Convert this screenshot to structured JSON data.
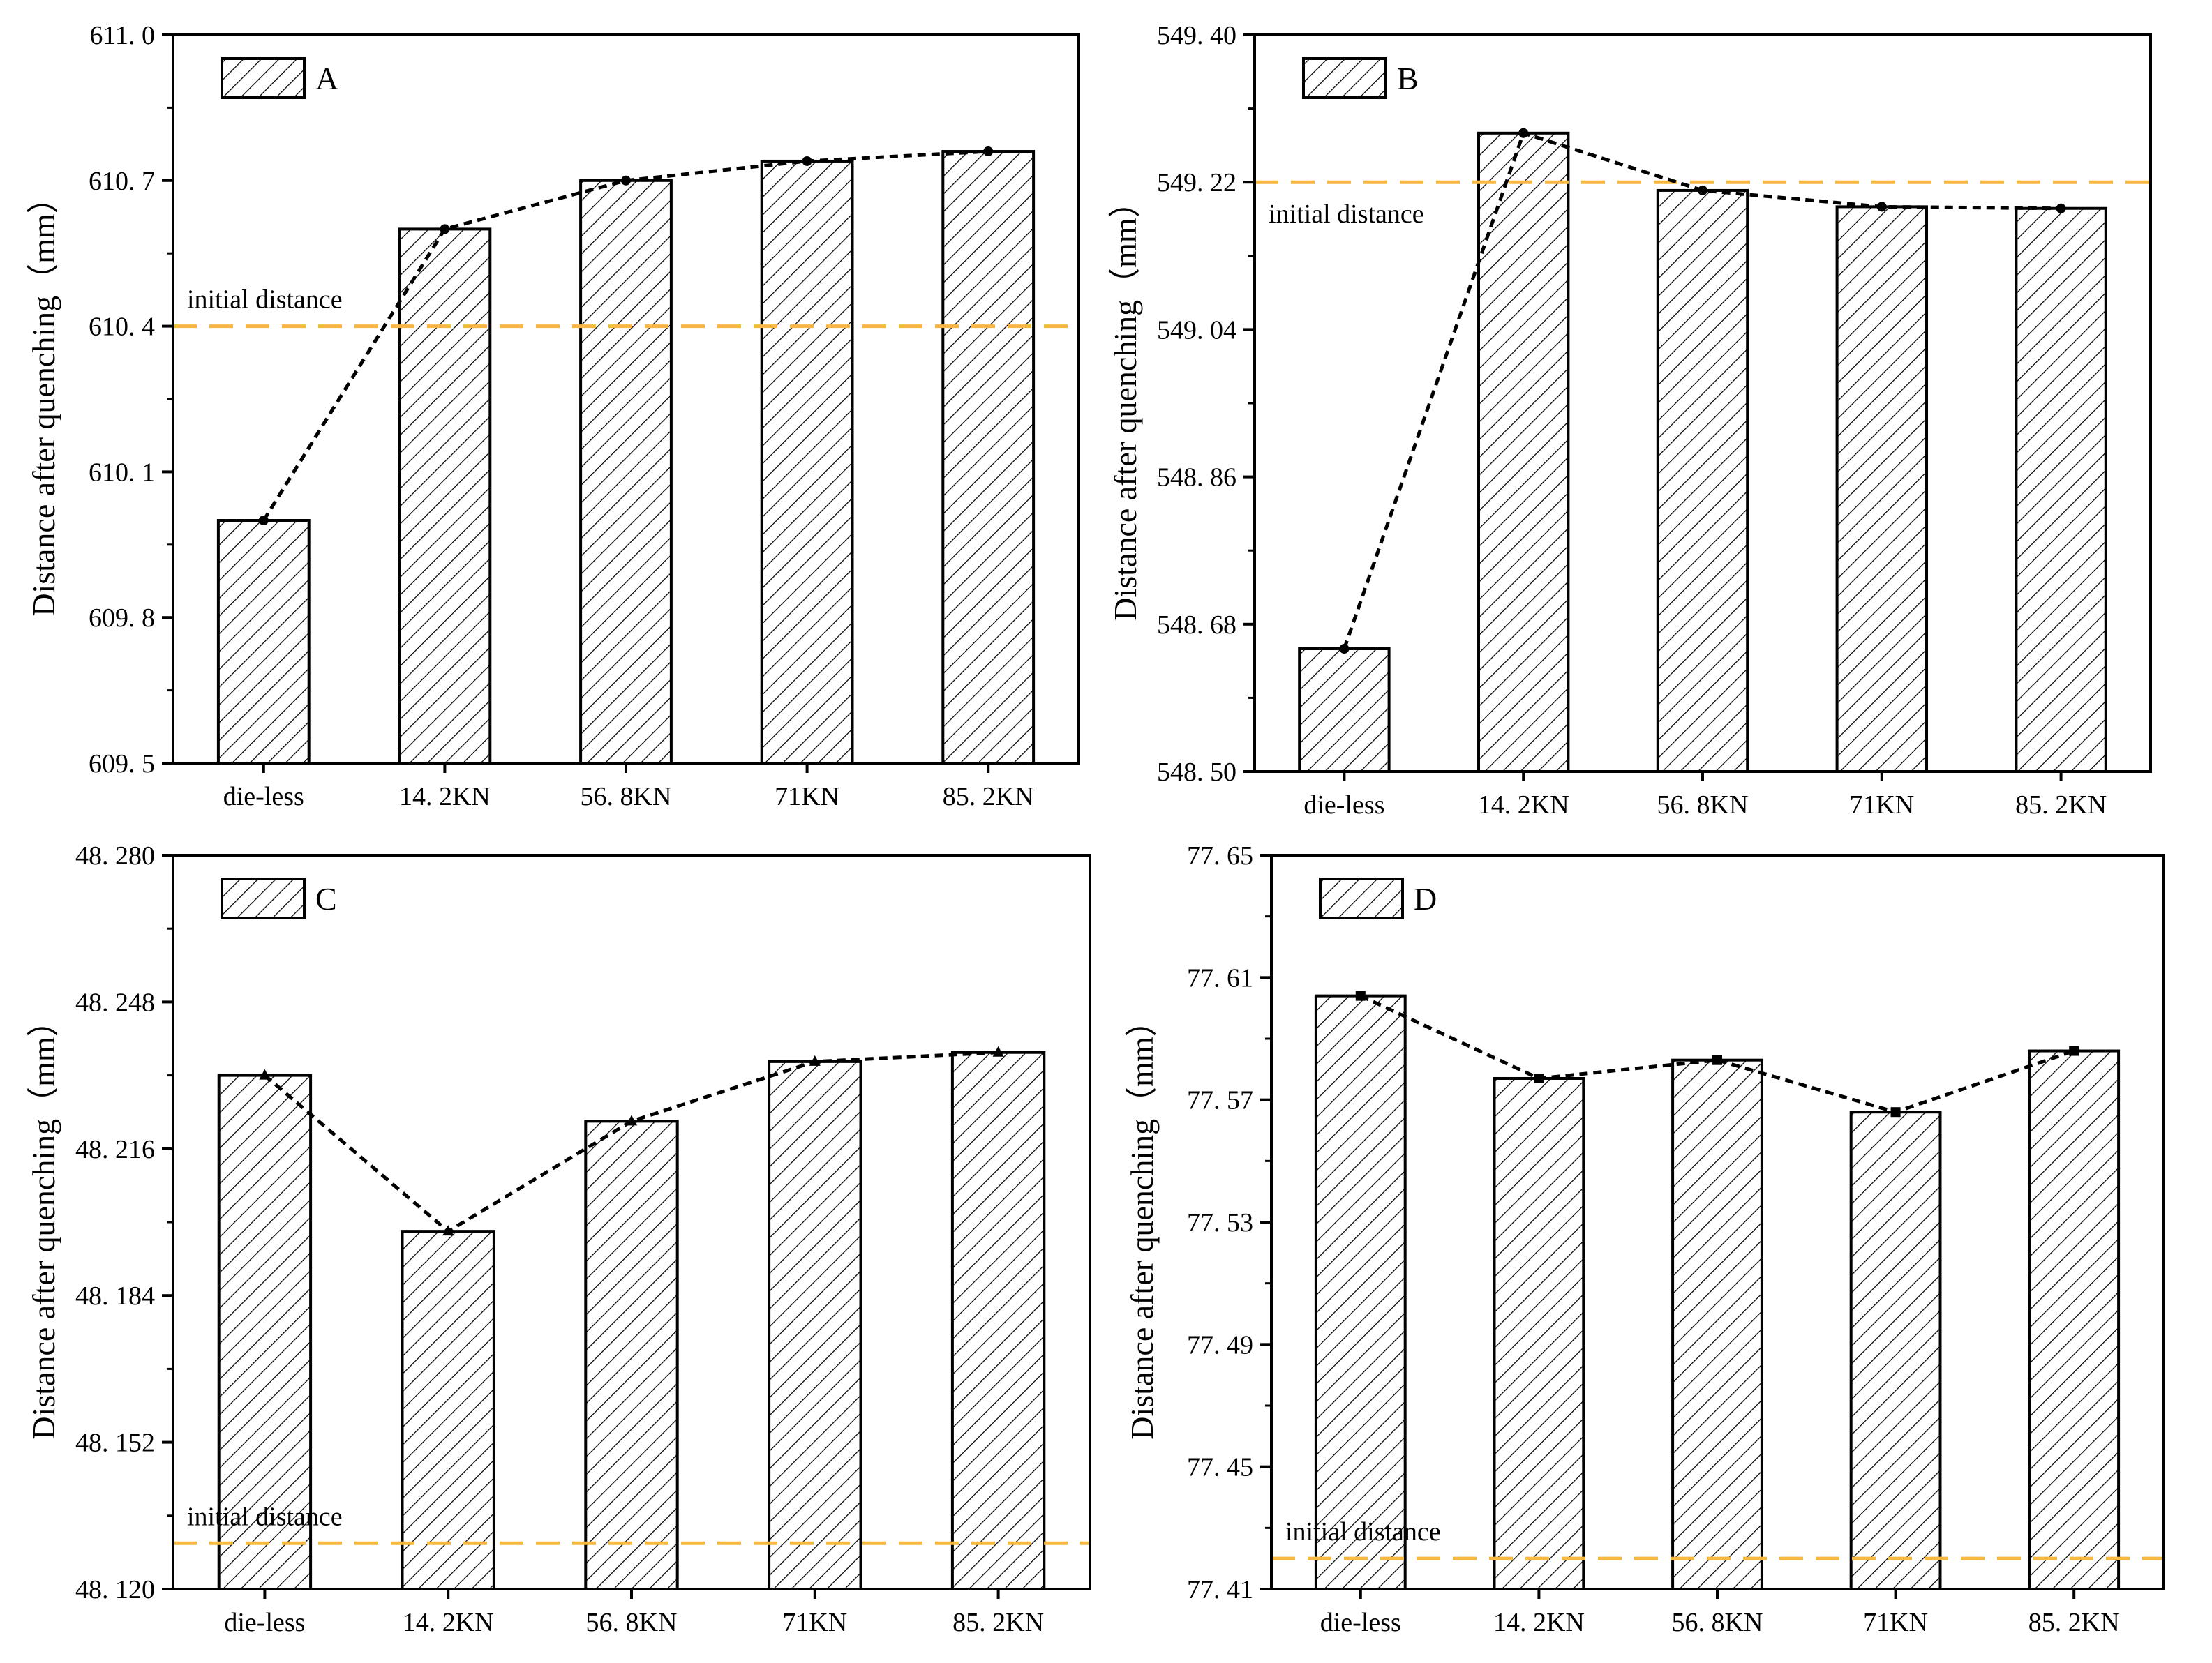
{
  "figure": {
    "y_axis_title": "Distance after quenching（mm）",
    "reference_label": "initial distance",
    "colors": {
      "bar_fill": "#ffffff",
      "hatch": "#000000",
      "reference_line": "#f5b942",
      "trend_line": "#000000"
    }
  },
  "chart_data": [
    {
      "type": "bar",
      "panel": "A",
      "legend_label": "A",
      "categories": [
        "die-less",
        "14. 2KN",
        "56. 8KN",
        "71KN",
        "85. 2KN"
      ],
      "values": [
        610.0,
        610.6,
        610.7,
        610.74,
        610.76
      ],
      "ylim": [
        609.5,
        611.0
      ],
      "yticks": [
        609.5,
        609.8,
        610.1,
        610.4,
        610.7,
        611.0
      ],
      "ytick_labels": [
        "609. 5",
        "609. 8",
        "610. 1",
        "610. 4",
        "610. 7",
        "611. 0"
      ],
      "reference_value": 610.4,
      "reference_label": "initial distance",
      "reference_label_position": "above-left",
      "ylabel": "Distance after quenching（mm）",
      "trend_marker": "circle"
    },
    {
      "type": "bar",
      "panel": "B",
      "legend_label": "B",
      "categories": [
        "die-less",
        "14. 2KN",
        "56. 8KN",
        "71KN",
        "85. 2KN"
      ],
      "values": [
        548.65,
        549.28,
        549.21,
        549.19,
        549.188
      ],
      "ylim": [
        548.5,
        549.4
      ],
      "yticks": [
        548.5,
        548.68,
        548.86,
        549.04,
        549.22,
        549.4
      ],
      "ytick_labels": [
        "548. 50",
        "548. 68",
        "548. 86",
        "549. 04",
        "549. 22",
        "549. 40"
      ],
      "reference_value": 549.22,
      "reference_label": "initial distance",
      "reference_label_position": "below-left",
      "ylabel": "Distance after quenching（mm）",
      "trend_marker": "circle"
    },
    {
      "type": "bar",
      "panel": "C",
      "legend_label": "C",
      "categories": [
        "die-less",
        "14. 2KN",
        "56. 8KN",
        "71KN",
        "85. 2KN"
      ],
      "values": [
        48.232,
        48.198,
        48.222,
        48.235,
        48.237
      ],
      "ylim": [
        48.12,
        48.28
      ],
      "yticks": [
        48.12,
        48.152,
        48.184,
        48.216,
        48.248,
        48.28
      ],
      "ytick_labels": [
        "48. 120",
        "48. 152",
        "48. 184",
        "48. 216",
        "48. 248",
        "48. 280"
      ],
      "reference_value": 48.13,
      "reference_label": "initial distance",
      "reference_label_position": "above-left",
      "ylabel": "Distance after quenching（mm）",
      "trend_marker": "triangle"
    },
    {
      "type": "bar",
      "panel": "D",
      "legend_label": "D",
      "categories": [
        "die-less",
        "14. 2KN",
        "56. 8KN",
        "71KN",
        "85. 2KN"
      ],
      "values": [
        77.604,
        77.577,
        77.583,
        77.566,
        77.586
      ],
      "ylim": [
        77.41,
        77.65
      ],
      "yticks": [
        77.41,
        77.45,
        77.49,
        77.53,
        77.57,
        77.61,
        77.65
      ],
      "ytick_labels": [
        "77. 41",
        "77. 45",
        "77. 49",
        "77. 53",
        "77. 57",
        "77. 61",
        "77. 65"
      ],
      "reference_value": 77.42,
      "reference_label": "initial distance",
      "reference_label_position": "above-left",
      "ylabel": "Distance after quenching（mm）",
      "trend_marker": "square"
    }
  ]
}
